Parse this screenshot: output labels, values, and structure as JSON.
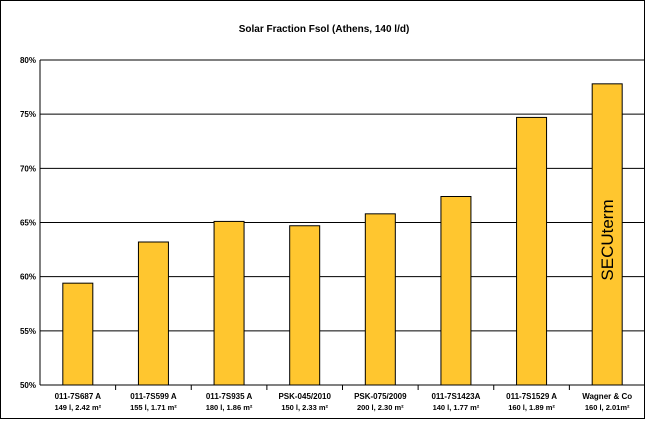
{
  "chart_data": {
    "type": "bar",
    "title": "Solar Fraction Fsol (Athens, 140 l/d)",
    "categories": [
      [
        "011-7S687 A",
        "149 l, 2.42 m²"
      ],
      [
        "011-7S599 A",
        "155 l, 1.71 m²"
      ],
      [
        "011-7S935 A",
        "180 l, 1.86 m²"
      ],
      [
        "PSK-045/2010",
        "150 l, 2.33 m²"
      ],
      [
        "PSK-075/2009",
        "200 l, 2.30 m²"
      ],
      [
        "011-7S1423A",
        "140 l, 1.77 m²"
      ],
      [
        "011-7S1529 A",
        "160 l, 1.89 m²"
      ],
      [
        "Wagner & Co",
        "160 l, 2.01m²"
      ]
    ],
    "values": [
      59.4,
      63.2,
      65.1,
      64.7,
      65.8,
      67.4,
      74.7,
      77.8
    ],
    "ylim": [
      50,
      80
    ],
    "yticks": [
      "50%",
      "55%",
      "60%",
      "65%",
      "70%",
      "75%",
      "80%"
    ],
    "ytick_values": [
      50,
      55,
      60,
      65,
      70,
      75,
      80
    ],
    "grid": true,
    "bar_color": "#FFC62F",
    "annotation": "SECUterm"
  }
}
